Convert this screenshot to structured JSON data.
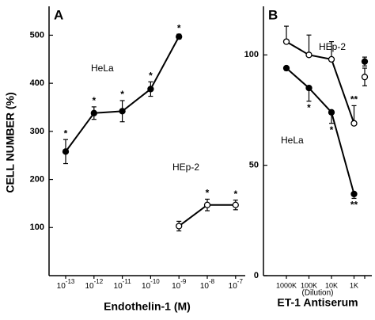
{
  "chart_data": [
    {
      "type": "line",
      "panel": "A",
      "ylabel": "CELL NUMBER (%)",
      "xlabel": "Endothelin-1 (M)",
      "categories": [
        {
          "base": "10",
          "exponent": "-13"
        },
        {
          "base": "10",
          "exponent": "-12"
        },
        {
          "base": "10",
          "exponent": "-11"
        },
        {
          "base": "10",
          "exponent": "-10"
        },
        {
          "base": "10",
          "exponent": "-9"
        },
        {
          "base": "10",
          "exponent": "-8"
        },
        {
          "base": "10",
          "exponent": "-7"
        }
      ],
      "ylim": [
        0,
        560
      ],
      "yticks": [
        100,
        200,
        300,
        400,
        500
      ],
      "series": [
        {
          "name": "HeLa",
          "marker": "filled",
          "color": "#000000",
          "line": true,
          "error_direction": "both",
          "values": [
            258,
            338,
            342,
            388,
            497,
            null,
            null
          ],
          "errors": [
            25,
            13,
            22,
            15,
            5,
            null,
            null
          ],
          "annotations": [
            "*",
            "*",
            "*",
            "*",
            "*",
            null,
            null
          ]
        },
        {
          "name": "HEp-2",
          "marker": "open",
          "color": "#000000",
          "line": true,
          "error_direction": "both",
          "values": [
            null,
            null,
            null,
            null,
            103,
            147,
            147
          ],
          "errors": [
            null,
            null,
            null,
            null,
            10,
            12,
            10
          ],
          "annotations": [
            null,
            null,
            null,
            null,
            null,
            "*",
            "*"
          ]
        }
      ]
    },
    {
      "type": "line",
      "panel": "B",
      "xlabel": "ET-1 Antiserum",
      "xsublabel": "(Dilution)",
      "categories": [
        "1000K",
        "100K",
        "10K",
        "1K",
        null
      ],
      "ylim": [
        0,
        122
      ],
      "yticks": [
        0,
        50,
        100
      ],
      "series": [
        {
          "name": "HEp-2",
          "marker": "open",
          "color": "#000000",
          "line": true,
          "error_direction": "up",
          "values": [
            106,
            100,
            98,
            69,
            null
          ],
          "errors": [
            7,
            9,
            8,
            8,
            null
          ],
          "annotations": [
            null,
            null,
            null,
            "**",
            null
          ]
        },
        {
          "name": "HeLa",
          "marker": "filled",
          "color": "#000000",
          "line": true,
          "error_direction": "down",
          "values": [
            94,
            85,
            74,
            37,
            null
          ],
          "errors": [
            1,
            6,
            5,
            2,
            null
          ],
          "annotations": [
            null,
            "*",
            "*",
            "**",
            null
          ]
        },
        {
          "marker": "open",
          "color": "#000000",
          "line": false,
          "error_direction": "both",
          "values": [
            null,
            null,
            null,
            null,
            90
          ],
          "errors": [
            null,
            null,
            null,
            null,
            4
          ]
        },
        {
          "marker": "filled",
          "color": "#000000",
          "line": false,
          "error_direction": "both",
          "values": [
            null,
            null,
            null,
            null,
            97
          ],
          "errors": [
            null,
            null,
            null,
            null,
            2
          ]
        }
      ]
    }
  ]
}
